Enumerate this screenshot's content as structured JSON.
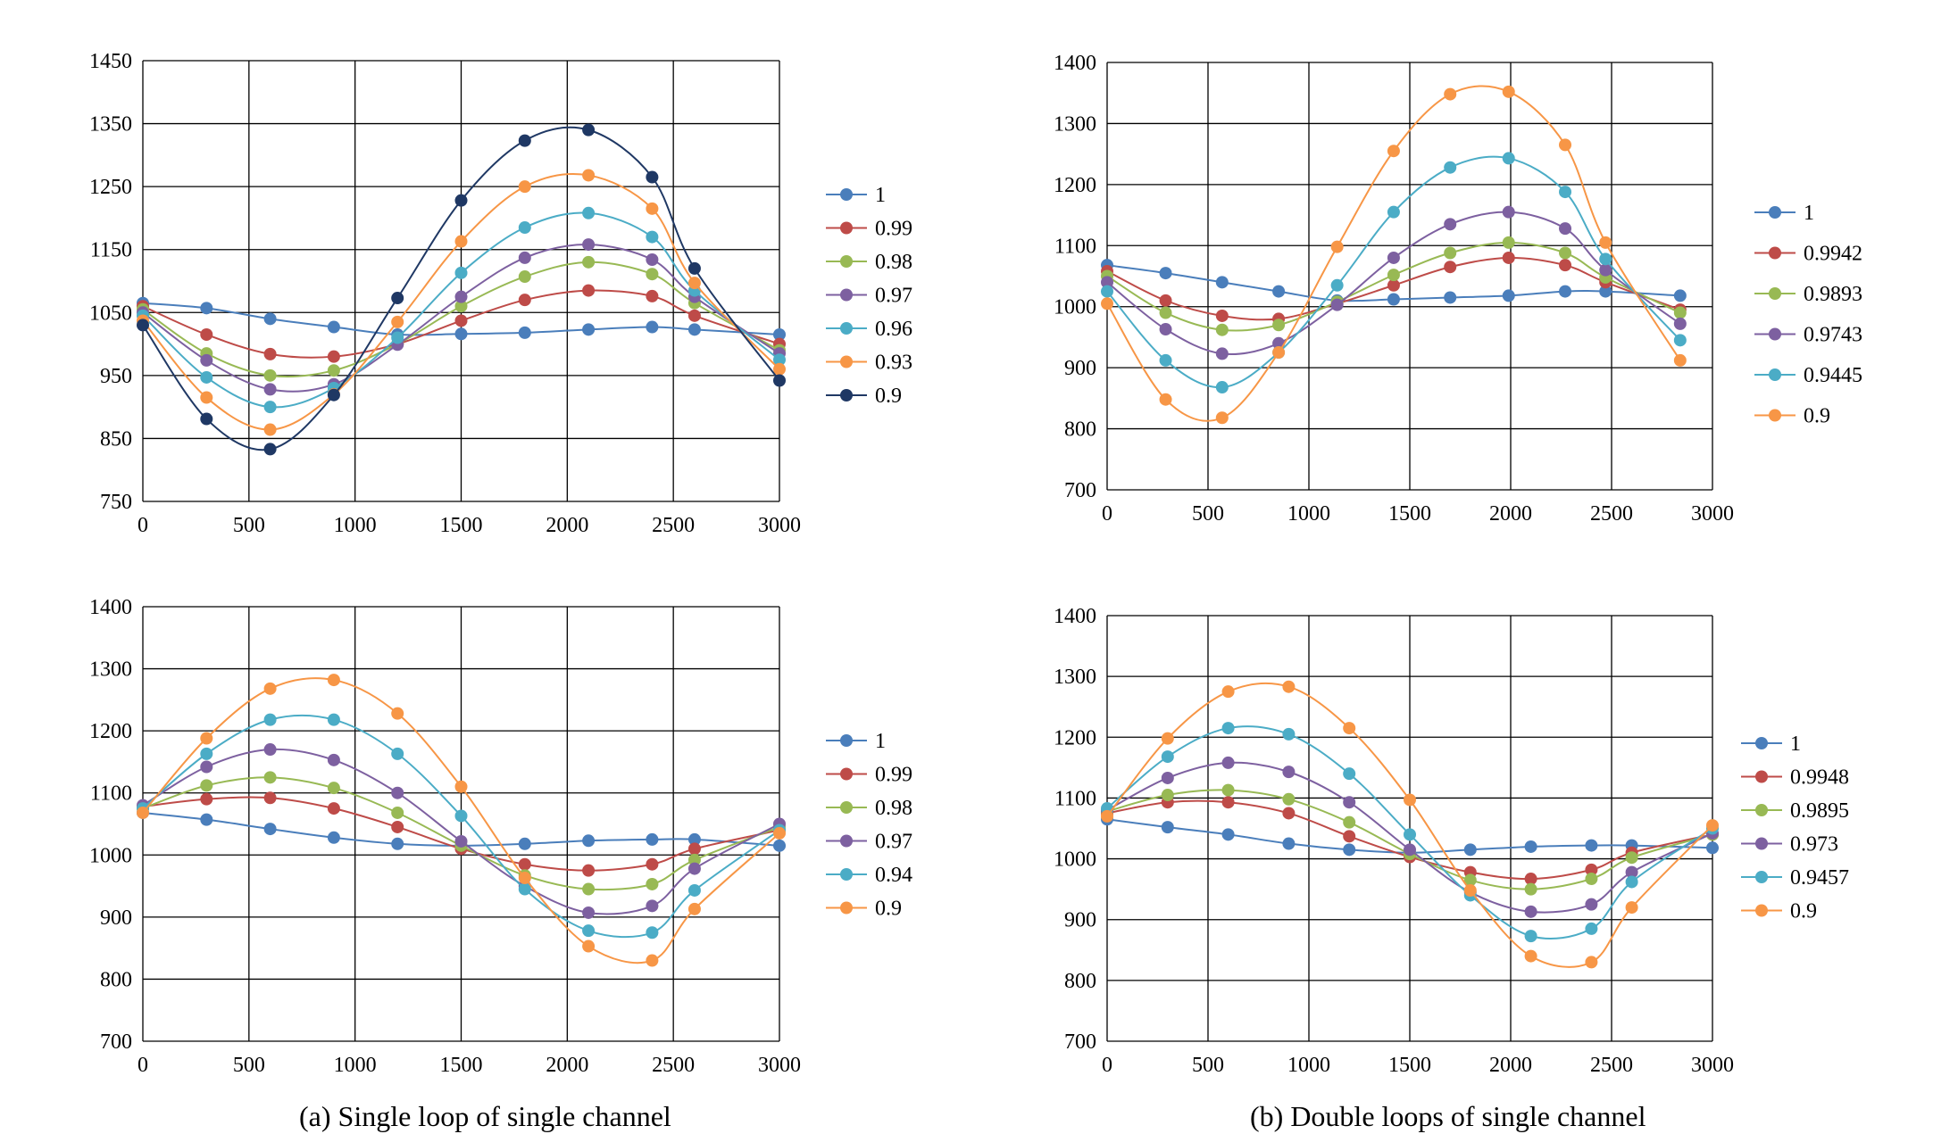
{
  "colors": {
    "1": "#4a7ebb",
    "2": "#be4b48",
    "3": "#98b954",
    "4": "#7d60a0",
    "5": "#4bacc6",
    "6": "#f79646",
    "7": "#1f3864",
    "grid": "#000000",
    "axis_text": "#000000"
  },
  "captions": {
    "a": "(a) Single loop of single channel",
    "b": "(b) Double loops of single channel"
  },
  "chart_data": [
    {
      "type": "line",
      "title": "",
      "xlabel": "",
      "ylabel": "",
      "xlim": [
        0,
        3000
      ],
      "ylim": [
        750,
        1450
      ],
      "xticks": [
        0,
        500,
        1000,
        1500,
        2000,
        2500,
        3000
      ],
      "yticks": [
        750,
        850,
        950,
        1050,
        1150,
        1250,
        1350,
        1450
      ],
      "grid": true,
      "legend": "right",
      "x": [
        0,
        300,
        600,
        900,
        1200,
        1500,
        1800,
        2100,
        2400,
        2600,
        3000
      ],
      "series": [
        {
          "name": "1",
          "values": [
            1065,
            1057,
            1040,
            1027,
            1015,
            1016,
            1018,
            1023,
            1027,
            1023,
            1015
          ]
        },
        {
          "name": "0.99",
          "values": [
            1060,
            1015,
            984,
            980,
            1000,
            1037,
            1070,
            1085,
            1076,
            1045,
            1000
          ]
        },
        {
          "name": "0.98",
          "values": [
            1055,
            985,
            950,
            958,
            1000,
            1060,
            1107,
            1130,
            1111,
            1065,
            990
          ]
        },
        {
          "name": "0.97",
          "values": [
            1050,
            974,
            928,
            936,
            999,
            1075,
            1137,
            1158,
            1134,
            1075,
            985
          ]
        },
        {
          "name": "0.96",
          "values": [
            1045,
            947,
            900,
            930,
            1010,
            1113,
            1185,
            1208,
            1170,
            1085,
            975
          ]
        },
        {
          "name": "0.93",
          "values": [
            1037,
            915,
            864,
            920,
            1035,
            1163,
            1250,
            1268,
            1215,
            1097,
            960
          ]
        },
        {
          "name": "0.9",
          "values": [
            1030,
            881,
            833,
            919,
            1073,
            1228,
            1323,
            1340,
            1265,
            1120,
            942
          ]
        }
      ]
    },
    {
      "type": "line",
      "title": "",
      "xlabel": "",
      "ylabel": "",
      "xlim": [
        0,
        3000
      ],
      "ylim": [
        700,
        1400
      ],
      "xticks": [
        0,
        500,
        1000,
        1500,
        2000,
        2500,
        3000
      ],
      "yticks": [
        700,
        800,
        900,
        1000,
        1100,
        1200,
        1300,
        1400
      ],
      "grid": true,
      "legend": "right",
      "x": [
        0,
        290,
        570,
        850,
        1140,
        1420,
        1700,
        1990,
        2270,
        2470,
        2840
      ],
      "series": [
        {
          "name": "1",
          "values": [
            1068,
            1055,
            1040,
            1025,
            1010,
            1012,
            1015,
            1018,
            1025,
            1025,
            1018
          ]
        },
        {
          "name": "0.9942",
          "values": [
            1058,
            1010,
            985,
            980,
            1005,
            1035,
            1065,
            1080,
            1068,
            1040,
            995
          ]
        },
        {
          "name": "0.9893",
          "values": [
            1050,
            990,
            962,
            970,
            1008,
            1052,
            1088,
            1105,
            1088,
            1048,
            990
          ]
        },
        {
          "name": "0.9743",
          "values": [
            1040,
            963,
            923,
            940,
            1003,
            1080,
            1135,
            1155,
            1128,
            1060,
            972
          ]
        },
        {
          "name": "0.9445",
          "values": [
            1025,
            912,
            868,
            925,
            1035,
            1155,
            1228,
            1243,
            1188,
            1078,
            945
          ]
        },
        {
          "name": "0.9",
          "values": [
            1005,
            848,
            818,
            925,
            1098,
            1255,
            1348,
            1352,
            1265,
            1105,
            912
          ]
        }
      ]
    },
    {
      "type": "line",
      "title": "",
      "xlabel": "",
      "ylabel": "",
      "xlim": [
        0,
        3000
      ],
      "ylim": [
        700,
        1400
      ],
      "xticks": [
        0,
        500,
        1000,
        1500,
        2000,
        2500,
        3000
      ],
      "yticks": [
        700,
        800,
        900,
        1000,
        1100,
        1200,
        1300,
        1400
      ],
      "grid": true,
      "legend": "right",
      "x": [
        0,
        300,
        600,
        900,
        1200,
        1500,
        1800,
        2100,
        2400,
        2600,
        3000
      ],
      "series": [
        {
          "name": "1",
          "values": [
            1068,
            1057,
            1042,
            1028,
            1018,
            1015,
            1018,
            1023,
            1025,
            1025,
            1015
          ]
        },
        {
          "name": "0.99",
          "values": [
            1078,
            1090,
            1092,
            1075,
            1045,
            1010,
            985,
            975,
            985,
            1010,
            1040
          ]
        },
        {
          "name": "0.98",
          "values": [
            1075,
            1112,
            1125,
            1108,
            1068,
            1015,
            967,
            945,
            953,
            992,
            1045
          ]
        },
        {
          "name": "0.97",
          "values": [
            1080,
            1142,
            1170,
            1153,
            1100,
            1022,
            950,
            907,
            918,
            978,
            1050
          ]
        },
        {
          "name": "0.94",
          "values": [
            1075,
            1163,
            1218,
            1218,
            1163,
            1063,
            945,
            878,
            875,
            943,
            1040
          ]
        },
        {
          "name": "0.9",
          "values": [
            1068,
            1188,
            1268,
            1282,
            1228,
            1110,
            963,
            853,
            830,
            913,
            1035
          ]
        }
      ]
    },
    {
      "type": "line",
      "title": "",
      "xlabel": "",
      "ylabel": "",
      "xlim": [
        0,
        3000
      ],
      "ylim": [
        700,
        1400
      ],
      "xticks": [
        0,
        500,
        1000,
        1500,
        2000,
        2500,
        3000
      ],
      "yticks": [
        700,
        800,
        900,
        1000,
        1100,
        1200,
        1300,
        1400
      ],
      "grid": true,
      "legend": "right",
      "x": [
        0,
        300,
        600,
        900,
        1200,
        1500,
        1800,
        2100,
        2400,
        2600,
        3000
      ],
      "series": [
        {
          "name": "1",
          "values": [
            1065,
            1052,
            1040,
            1025,
            1015,
            1010,
            1015,
            1020,
            1022,
            1022,
            1018
          ]
        },
        {
          "name": "0.9948",
          "values": [
            1075,
            1093,
            1093,
            1075,
            1037,
            1003,
            978,
            967,
            982,
            1010,
            1040
          ]
        },
        {
          "name": "0.9895",
          "values": [
            1078,
            1105,
            1113,
            1098,
            1060,
            1008,
            965,
            950,
            967,
            1002,
            1040
          ]
        },
        {
          "name": "0.973",
          "values": [
            1080,
            1133,
            1158,
            1143,
            1093,
            1015,
            945,
            913,
            925,
            978,
            1042
          ]
        },
        {
          "name": "0.9457",
          "values": [
            1083,
            1168,
            1215,
            1205,
            1140,
            1040,
            940,
            873,
            885,
            962,
            1050
          ]
        },
        {
          "name": "0.9",
          "values": [
            1070,
            1198,
            1275,
            1283,
            1215,
            1097,
            948,
            840,
            830,
            920,
            1055
          ]
        }
      ]
    }
  ]
}
